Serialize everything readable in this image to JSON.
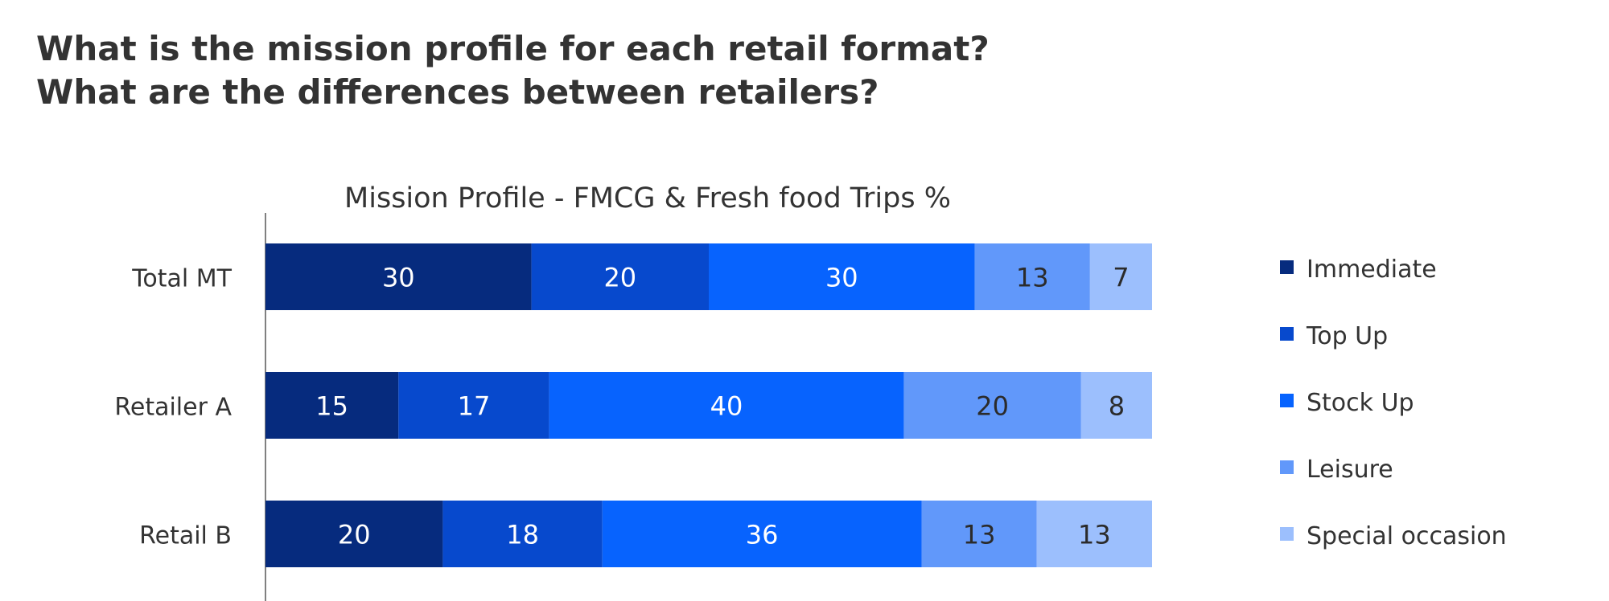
{
  "page": {
    "headline_line1": "What is the mission profile for each retail format?",
    "headline_line2": "What are the differences between retailers?"
  },
  "chart_data": {
    "type": "bar",
    "orientation": "horizontal",
    "stacked": true,
    "title": "Mission Profile - FMCG & Fresh food Trips %",
    "unit": "%",
    "categories": [
      "Total MT",
      "Retailer A",
      "Retail B"
    ],
    "series": [
      {
        "name": "Immediate",
        "color": "#062b7e",
        "values": [
          30,
          15,
          20
        ]
      },
      {
        "name": "Top Up",
        "color": "#0749cd",
        "values": [
          20,
          17,
          18
        ]
      },
      {
        "name": "Stock Up",
        "color": "#0763fe",
        "values": [
          30,
          40,
          36
        ]
      },
      {
        "name": "Leisure",
        "color": "#6198fa",
        "values": [
          13,
          20,
          13
        ]
      },
      {
        "name": "Special occasion",
        "color": "#9cbffd",
        "values": [
          7,
          8,
          13
        ]
      }
    ],
    "xlim": [
      0,
      100
    ],
    "legend": "right",
    "grid": false,
    "xlabel": "",
    "ylabel": ""
  }
}
